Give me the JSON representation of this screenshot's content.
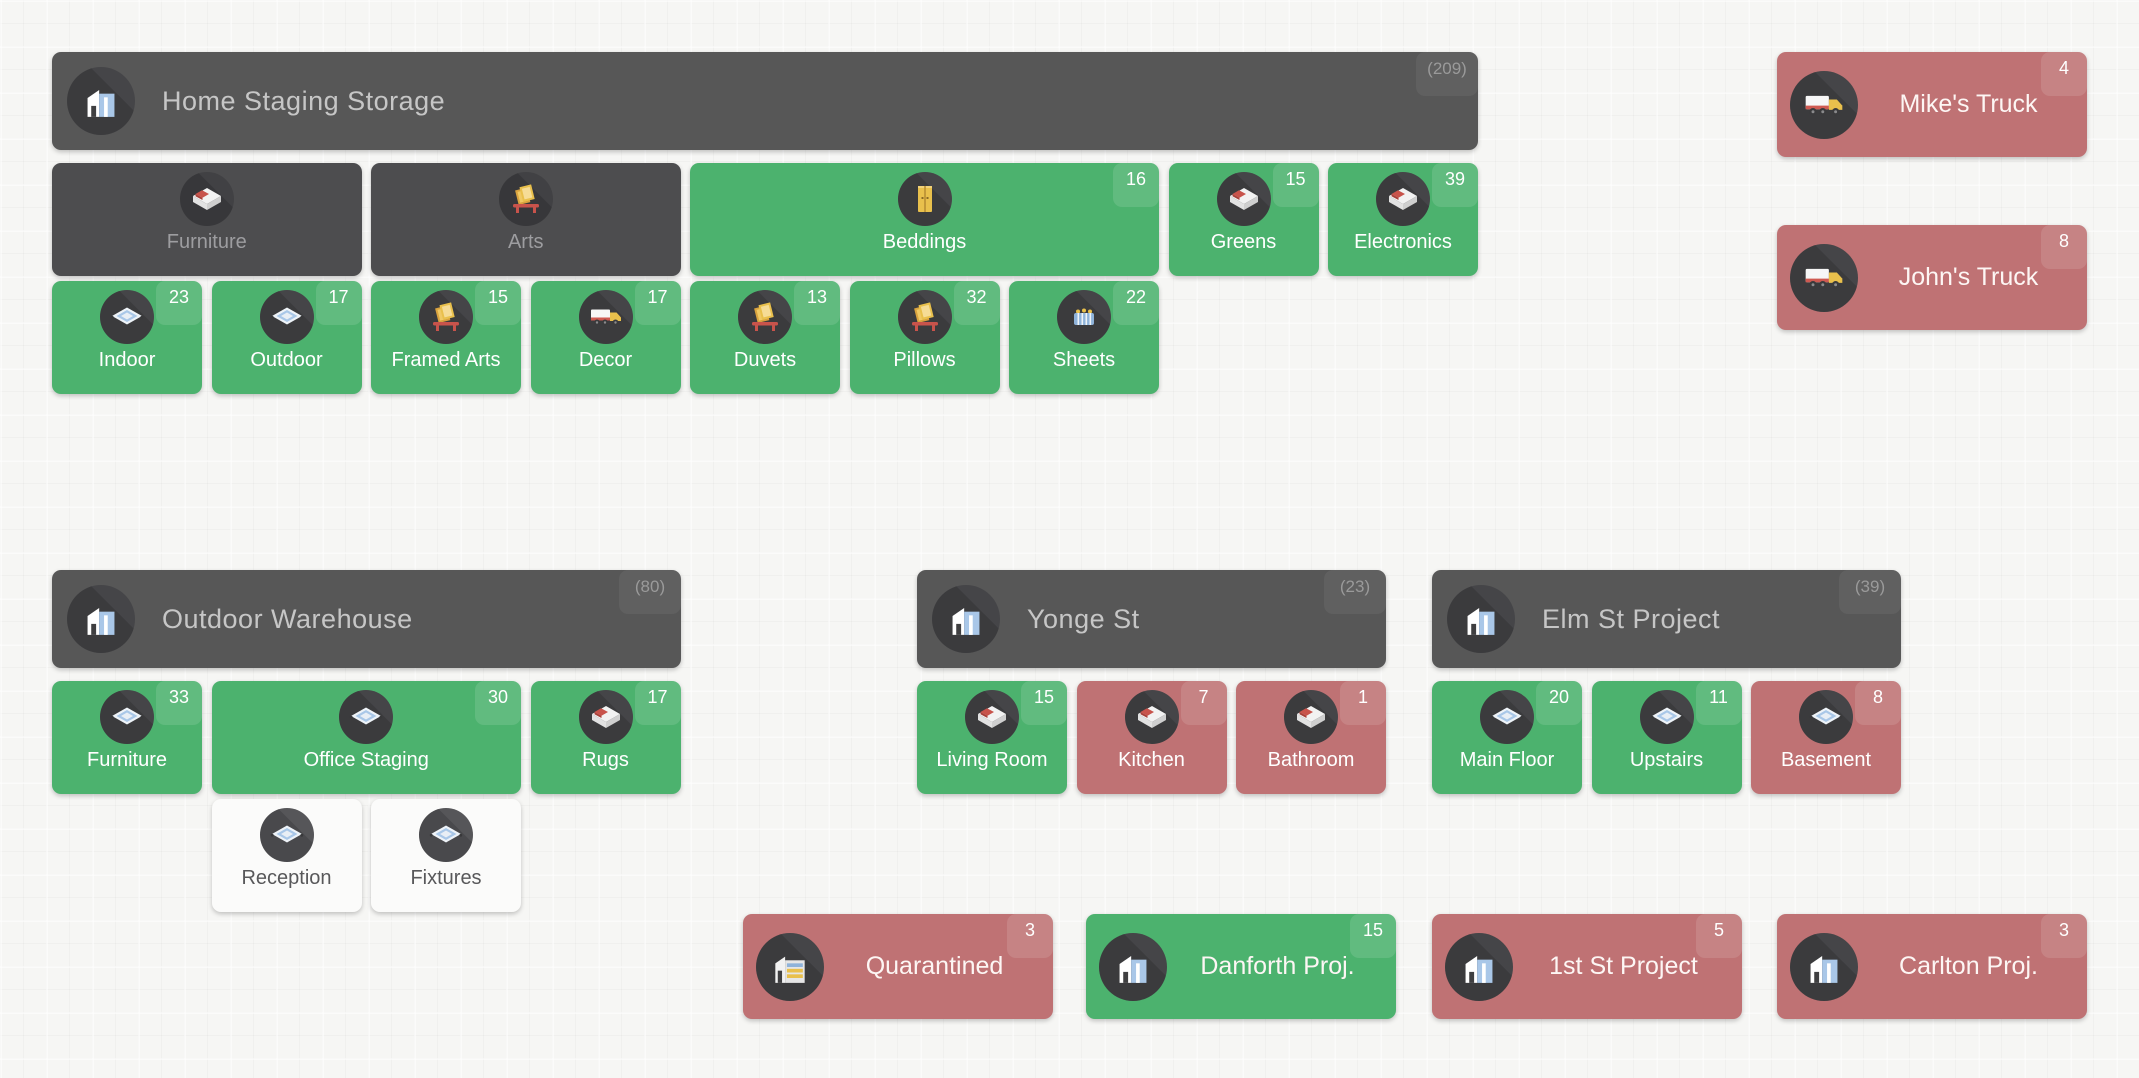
{
  "colors": {
    "green": "#4cb26e",
    "red": "#bf7274",
    "dark_header": "#575757",
    "dark_card": "#4d4d4f",
    "white_card": "#fbfbfa",
    "page_background": "#f6f6f4"
  },
  "sections": [
    {
      "name": "home-staging-storage",
      "header": {
        "label": "Home Staging Storage",
        "count": "(209)",
        "icon": "building-icon"
      },
      "rows": [
        {
          "offset_cols": 0,
          "cards": [
            {
              "label": "Furniture",
              "icon": "bed-icon",
              "variant": "dark",
              "span": 2
            },
            {
              "label": "Arts",
              "icon": "frames-icon",
              "variant": "dark",
              "span": 2
            },
            {
              "label": "Beddings",
              "icon": "door-icon",
              "variant": "green",
              "badge": "16",
              "span": 3
            },
            {
              "label": "Greens",
              "icon": "bed-icon",
              "variant": "green",
              "badge": "15",
              "span": 1
            },
            {
              "label": "Electronics",
              "icon": "bed-icon",
              "variant": "green",
              "badge": "39",
              "span": 1
            }
          ]
        },
        {
          "offset_cols": 0,
          "cards": [
            {
              "label": "Indoor",
              "icon": "cushion-icon",
              "variant": "green",
              "badge": "23",
              "span": 1
            },
            {
              "label": "Outdoor",
              "icon": "cushion-icon",
              "variant": "green",
              "badge": "17",
              "span": 1
            },
            {
              "label": "Framed Arts",
              "icon": "frames-icon",
              "variant": "green",
              "badge": "15",
              "span": 1
            },
            {
              "label": "Decor",
              "icon": "truck-icon",
              "variant": "green",
              "badge": "17",
              "span": 1
            },
            {
              "label": "Duvets",
              "icon": "frames-icon",
              "variant": "green",
              "badge": "13",
              "span": 1
            },
            {
              "label": "Pillows",
              "icon": "frames-icon",
              "variant": "green",
              "badge": "32",
              "span": 1
            },
            {
              "label": "Sheets",
              "icon": "sheets-icon",
              "variant": "green",
              "badge": "22",
              "span": 1
            }
          ]
        }
      ]
    },
    {
      "name": "outdoor-warehouse",
      "header": {
        "label": "Outdoor Warehouse",
        "count": "(80)",
        "icon": "building-icon"
      },
      "rows": [
        {
          "offset_cols": 0,
          "cards": [
            {
              "label": "Furniture",
              "icon": "cushion-icon",
              "variant": "green",
              "badge": "33",
              "span": 1
            },
            {
              "label": "Office Staging",
              "icon": "cushion-icon",
              "variant": "green",
              "badge": "30",
              "span": 2
            },
            {
              "label": "Rugs",
              "icon": "bed-icon",
              "variant": "green",
              "badge": "17",
              "span": 1
            }
          ]
        },
        {
          "offset_cols": 1,
          "cards": [
            {
              "label": "Reception",
              "icon": "cushion-icon",
              "variant": "white",
              "span": 1
            },
            {
              "label": "Fixtures",
              "icon": "cushion-icon",
              "variant": "white",
              "span": 1
            }
          ]
        }
      ]
    },
    {
      "name": "yonge-st",
      "header": {
        "label": "Yonge St",
        "count": "(23)",
        "icon": "building-icon"
      },
      "rows": [
        {
          "offset_cols": 0,
          "cards": [
            {
              "label": "Living Room",
              "icon": "bed-icon",
              "variant": "green",
              "badge": "15",
              "span": 1
            },
            {
              "label": "Kitchen",
              "icon": "bed-icon",
              "variant": "red",
              "badge": "7",
              "span": 1
            },
            {
              "label": "Bathroom",
              "icon": "bed-icon",
              "variant": "red",
              "badge": "1",
              "span": 1
            }
          ]
        }
      ]
    },
    {
      "name": "elm-st-project",
      "header": {
        "label": "Elm St Project",
        "count": "(39)",
        "icon": "building-icon"
      },
      "rows": [
        {
          "offset_cols": 0,
          "cards": [
            {
              "label": "Main Floor",
              "icon": "cushion-icon",
              "variant": "green",
              "badge": "20",
              "span": 1
            },
            {
              "label": "Upstairs",
              "icon": "cushion-icon",
              "variant": "green",
              "badge": "11",
              "span": 1
            },
            {
              "label": "Basement",
              "icon": "cushion-icon",
              "variant": "red",
              "badge": "8",
              "span": 1
            }
          ]
        }
      ]
    }
  ],
  "trucks": [
    {
      "label": "Mike's Truck",
      "count": "4",
      "icon": "truck-icon",
      "variant": "red"
    },
    {
      "label": "John's Truck",
      "count": "8",
      "icon": "truck-icon",
      "variant": "red"
    }
  ],
  "bottom_cards": [
    {
      "label": "Quarantined",
      "count": "3",
      "icon": "warehouse-icon",
      "variant": "red"
    },
    {
      "label": "Danforth Proj.",
      "count": "15",
      "icon": "building-icon",
      "variant": "green"
    },
    {
      "label": "1st St Project",
      "count": "5",
      "icon": "building-icon",
      "variant": "red"
    },
    {
      "label": "Carlton Proj.",
      "count": "3",
      "icon": "building-icon",
      "variant": "red"
    }
  ]
}
